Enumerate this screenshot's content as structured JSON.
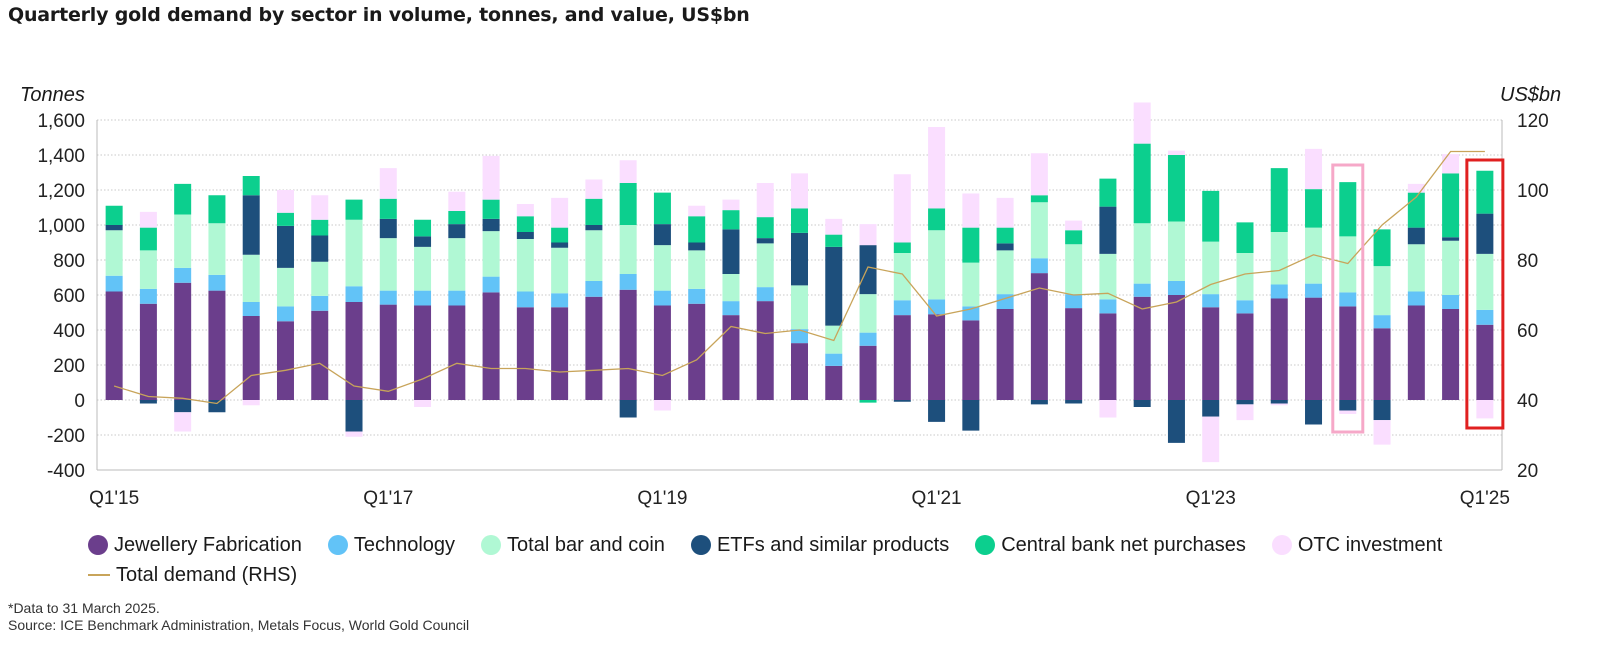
{
  "title": "Quarterly gold demand by sector in volume, tonnes, and value, US$bn",
  "left_unit": "Tonnes",
  "right_unit": "US$bn",
  "footnote": "*Data to 31 March 2025.",
  "source": "Source: ICE Benchmark Administration, Metals Focus, World Gold Council",
  "chart_data": {
    "type": "bar",
    "stacked": true,
    "categories": [
      "Q1'15",
      "Q2'15",
      "Q3'15",
      "Q4'15",
      "Q1'16",
      "Q2'16",
      "Q3'16",
      "Q4'16",
      "Q1'17",
      "Q2'17",
      "Q3'17",
      "Q4'17",
      "Q1'18",
      "Q2'18",
      "Q3'18",
      "Q4'18",
      "Q1'19",
      "Q2'19",
      "Q3'19",
      "Q4'19",
      "Q1'20",
      "Q2'20",
      "Q3'20",
      "Q4'20",
      "Q1'21",
      "Q2'21",
      "Q3'21",
      "Q4'21",
      "Q1'22",
      "Q2'22",
      "Q3'22",
      "Q4'22",
      "Q1'23",
      "Q2'23",
      "Q3'23",
      "Q4'23",
      "Q1'24",
      "Q2'24",
      "Q3'24",
      "Q4'24",
      "Q1'25"
    ],
    "x_tick_labels": [
      "Q1'15",
      "Q1'17",
      "Q1'19",
      "Q1'21",
      "Q1'23",
      "Q1'25"
    ],
    "y_left": {
      "min": -400,
      "max": 1600,
      "ticks": [
        "-400",
        "-200",
        "0",
        "200",
        "400",
        "600",
        "800",
        "1,000",
        "1,200",
        "1,400",
        "1,600"
      ]
    },
    "y_right": {
      "min": 20,
      "max": 120,
      "ticks": [
        "20",
        "40",
        "60",
        "80",
        "100",
        "120"
      ]
    },
    "grid": "horizontal",
    "legend_position": "bottom",
    "series": [
      {
        "name": "Jewellery Fabrication",
        "color": "#6b3e8c",
        "values": [
          620,
          550,
          670,
          625,
          480,
          450,
          510,
          560,
          545,
          540,
          540,
          615,
          530,
          530,
          590,
          630,
          540,
          550,
          485,
          565,
          325,
          195,
          310,
          485,
          490,
          455,
          520,
          725,
          525,
          495,
          590,
          600,
          530,
          495,
          580,
          585,
          535,
          410,
          540,
          520,
          430
        ]
      },
      {
        "name": "Technology",
        "color": "#62c3f7",
        "values": [
          90,
          85,
          85,
          90,
          80,
          85,
          85,
          90,
          80,
          85,
          85,
          90,
          90,
          80,
          90,
          90,
          85,
          85,
          80,
          80,
          80,
          70,
          75,
          85,
          85,
          80,
          85,
          85,
          80,
          80,
          75,
          80,
          75,
          75,
          80,
          80,
          80,
          75,
          80,
          80,
          85
        ]
      },
      {
        "name": "Total bar and coin",
        "color": "#b0f8d4",
        "values": [
          260,
          220,
          305,
          295,
          270,
          220,
          195,
          380,
          300,
          250,
          300,
          260,
          300,
          260,
          290,
          280,
          260,
          220,
          155,
          250,
          250,
          160,
          220,
          270,
          395,
          250,
          250,
          320,
          285,
          260,
          345,
          340,
          300,
          270,
          300,
          320,
          320,
          280,
          270,
          310,
          320
        ]
      },
      {
        "name": "ETFs and similar products",
        "color": "#1d4f7c",
        "values": [
          30,
          -20,
          -70,
          -70,
          340,
          240,
          150,
          -180,
          110,
          60,
          80,
          70,
          40,
          30,
          30,
          -100,
          120,
          45,
          255,
          30,
          300,
          450,
          280,
          -10,
          -125,
          -175,
          40,
          -25,
          -20,
          270,
          -40,
          -245,
          -95,
          -25,
          -20,
          -140,
          -60,
          -115,
          95,
          20,
          230
        ]
      },
      {
        "name": "Central bank net purchases",
        "color": "#0ccf8e",
        "values": [
          110,
          130,
          175,
          160,
          110,
          75,
          90,
          115,
          115,
          95,
          75,
          110,
          90,
          85,
          150,
          240,
          180,
          150,
          110,
          120,
          140,
          70,
          -15,
          60,
          125,
          200,
          90,
          40,
          80,
          160,
          455,
          380,
          290,
          175,
          365,
          220,
          310,
          210,
          200,
          365,
          245
        ]
      },
      {
        "name": "OTC investment",
        "color": "#fadeff",
        "values": [
          0,
          90,
          -110,
          0,
          -30,
          130,
          140,
          -30,
          175,
          -40,
          110,
          250,
          70,
          170,
          110,
          130,
          -60,
          60,
          60,
          195,
          200,
          90,
          120,
          390,
          465,
          195,
          170,
          240,
          55,
          -100,
          235,
          25,
          -260,
          -90,
          -10,
          230,
          -20,
          -140,
          50,
          110,
          -105
        ]
      },
      {
        "name": "Total demand (RHS)",
        "color": "#c8a45a",
        "type": "line",
        "axis": "right",
        "values": [
          44,
          41,
          40.5,
          39,
          47,
          48.5,
          50.5,
          44,
          42.5,
          46,
          50.5,
          49,
          49,
          48,
          48.5,
          49,
          47,
          51.5,
          61,
          59,
          60,
          57,
          78,
          76,
          64,
          66,
          69,
          72,
          70,
          70.5,
          66,
          68,
          73,
          76,
          77,
          81.5,
          79,
          90,
          98,
          111,
          111
        ]
      }
    ],
    "annotations": [
      {
        "type": "highlight-box",
        "target": "Q1'24",
        "color": "#f6a8c8"
      },
      {
        "type": "highlight-box",
        "target": "Q1'25",
        "color": "#e02020"
      }
    ]
  }
}
